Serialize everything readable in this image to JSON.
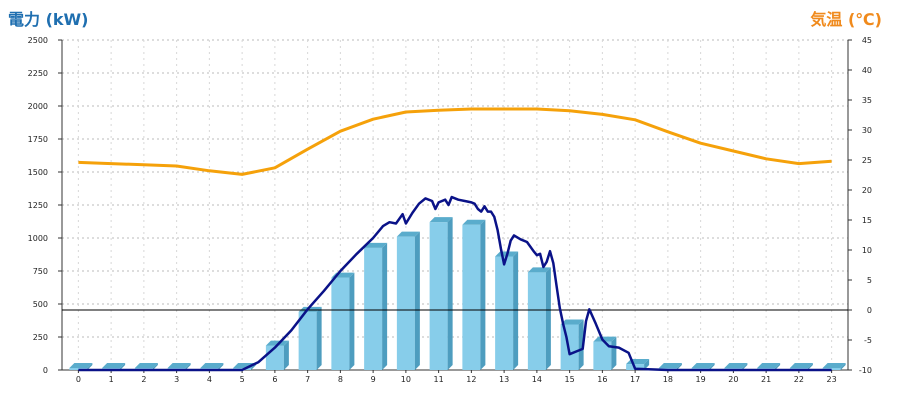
{
  "chart_data": {
    "type": "bar+line",
    "left_axis_title": "電力 (kW)",
    "right_axis_title": "気温 (℃)",
    "x_ticks": [
      "0",
      "1",
      "2",
      "3",
      "4",
      "5",
      "6",
      "7",
      "8",
      "9",
      "10",
      "11",
      "12",
      "13",
      "14",
      "15",
      "16",
      "17",
      "18",
      "19",
      "20",
      "21",
      "22",
      "23"
    ],
    "y_left": {
      "min": 0,
      "max": 2500,
      "ticks": [
        "0",
        "250",
        "500",
        "750",
        "1000",
        "1250",
        "1500",
        "1750",
        "2000",
        "2250",
        "2500"
      ]
    },
    "y_right": {
      "min": -10,
      "max": 45,
      "ticks": [
        "-10",
        "-5",
        "0",
        "5",
        "10",
        "15",
        "20",
        "25",
        "30",
        "35",
        "40",
        "45"
      ]
    },
    "grid": true,
    "bars": {
      "color": "#87cdea",
      "values": [
        0,
        0,
        0,
        0,
        0,
        0,
        185,
        440,
        700,
        925,
        1010,
        1120,
        1100,
        860,
        740,
        345,
        215,
        45,
        0,
        0,
        0,
        0,
        0,
        0
      ]
    },
    "power_line": {
      "color": "#0a1288",
      "points": [
        [
          0,
          0
        ],
        [
          1,
          0
        ],
        [
          2,
          0
        ],
        [
          3,
          0
        ],
        [
          4,
          0
        ],
        [
          5,
          0
        ],
        [
          5.5,
          60
        ],
        [
          6,
          170
        ],
        [
          6.5,
          300
        ],
        [
          7,
          460
        ],
        [
          7.5,
          600
        ],
        [
          8,
          750
        ],
        [
          8.5,
          880
        ],
        [
          9,
          1000
        ],
        [
          9.3,
          1090
        ],
        [
          9.5,
          1120
        ],
        [
          9.7,
          1110
        ],
        [
          9.9,
          1180
        ],
        [
          10,
          1110
        ],
        [
          10.2,
          1190
        ],
        [
          10.4,
          1260
        ],
        [
          10.6,
          1300
        ],
        [
          10.8,
          1280
        ],
        [
          10.9,
          1220
        ],
        [
          11,
          1270
        ],
        [
          11.2,
          1290
        ],
        [
          11.3,
          1250
        ],
        [
          11.4,
          1310
        ],
        [
          11.6,
          1290
        ],
        [
          11.8,
          1280
        ],
        [
          12,
          1270
        ],
        [
          12.1,
          1260
        ],
        [
          12.2,
          1220
        ],
        [
          12.3,
          1200
        ],
        [
          12.4,
          1240
        ],
        [
          12.5,
          1200
        ],
        [
          12.6,
          1200
        ],
        [
          12.7,
          1160
        ],
        [
          12.8,
          1060
        ],
        [
          12.9,
          920
        ],
        [
          13,
          800
        ],
        [
          13.1,
          880
        ],
        [
          13.2,
          980
        ],
        [
          13.3,
          1020
        ],
        [
          13.5,
          990
        ],
        [
          13.7,
          970
        ],
        [
          13.9,
          900
        ],
        [
          14,
          870
        ],
        [
          14.1,
          880
        ],
        [
          14.2,
          780
        ],
        [
          14.3,
          820
        ],
        [
          14.4,
          900
        ],
        [
          14.5,
          810
        ],
        [
          14.6,
          640
        ],
        [
          14.7,
          470
        ],
        [
          14.8,
          350
        ],
        [
          14.9,
          250
        ],
        [
          15,
          120
        ],
        [
          15.2,
          140
        ],
        [
          15.4,
          160
        ],
        [
          15.5,
          370
        ],
        [
          15.6,
          460
        ],
        [
          15.8,
          350
        ],
        [
          16,
          230
        ],
        [
          16.2,
          180
        ],
        [
          16.5,
          170
        ],
        [
          16.8,
          130
        ],
        [
          17,
          10
        ],
        [
          18,
          0
        ],
        [
          19,
          0
        ],
        [
          20,
          0
        ],
        [
          21,
          0
        ],
        [
          22,
          0
        ],
        [
          23,
          0
        ]
      ]
    },
    "temperature_line": {
      "color": "#f5a10a",
      "points": [
        [
          0,
          24.6
        ],
        [
          1,
          24.4
        ],
        [
          2,
          24.2
        ],
        [
          3,
          24.0
        ],
        [
          4,
          23.2
        ],
        [
          5,
          22.6
        ],
        [
          6,
          23.7
        ],
        [
          7,
          26.8
        ],
        [
          8,
          29.8
        ],
        [
          9,
          31.8
        ],
        [
          10,
          33.0
        ],
        [
          11,
          33.3
        ],
        [
          12,
          33.5
        ],
        [
          13,
          33.5
        ],
        [
          14,
          33.5
        ],
        [
          15,
          33.2
        ],
        [
          16,
          32.6
        ],
        [
          17,
          31.7
        ],
        [
          18,
          29.7
        ],
        [
          19,
          27.8
        ],
        [
          20,
          26.5
        ],
        [
          21,
          25.2
        ],
        [
          22,
          24.4
        ],
        [
          23,
          24.8
        ]
      ]
    }
  }
}
